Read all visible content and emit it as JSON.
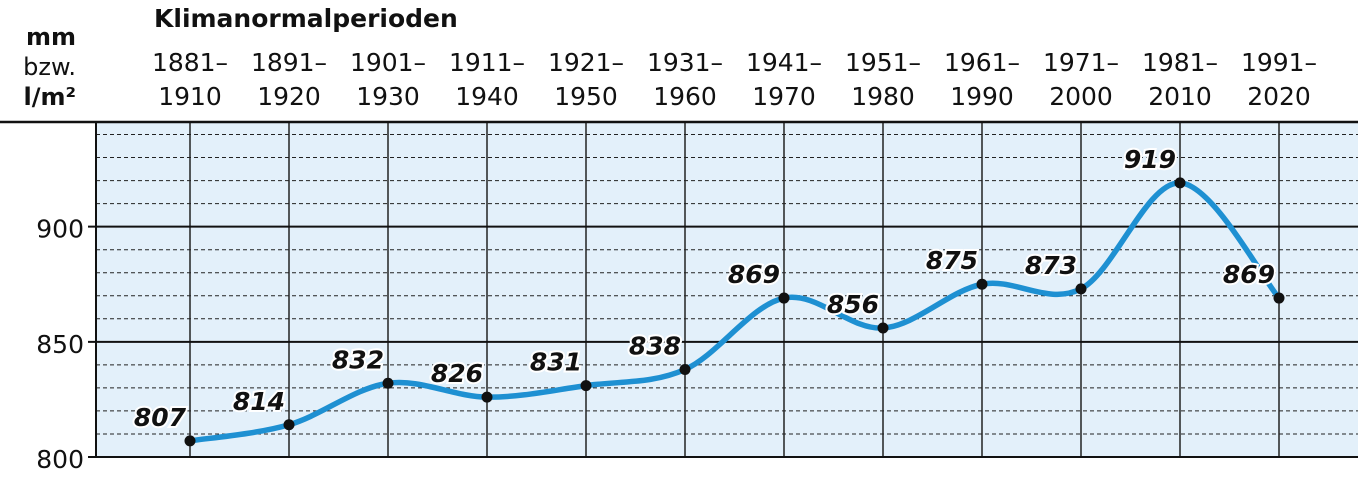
{
  "chart_data": {
    "type": "line",
    "title": "Klimanormalperioden",
    "ylabel_lines": [
      "mm",
      "bzw.",
      "l/m²"
    ],
    "categories": [
      "1881–1910",
      "1891–1920",
      "1901–1930",
      "1911–1940",
      "1921–1950",
      "1931–1960",
      "1941–1970",
      "1951–1980",
      "1961–1990",
      "1971–2000",
      "1981–2010",
      "1991–2020"
    ],
    "values": [
      807,
      814,
      832,
      826,
      831,
      838,
      869,
      856,
      875,
      873,
      919,
      869
    ],
    "color": "#1e90d2",
    "ylim": [
      800,
      945
    ],
    "yticks": [
      800,
      850,
      900
    ],
    "y_minor_ticks": [
      810,
      820,
      830,
      840,
      860,
      870,
      880,
      890,
      910,
      920,
      930,
      940
    ],
    "grid": true
  }
}
